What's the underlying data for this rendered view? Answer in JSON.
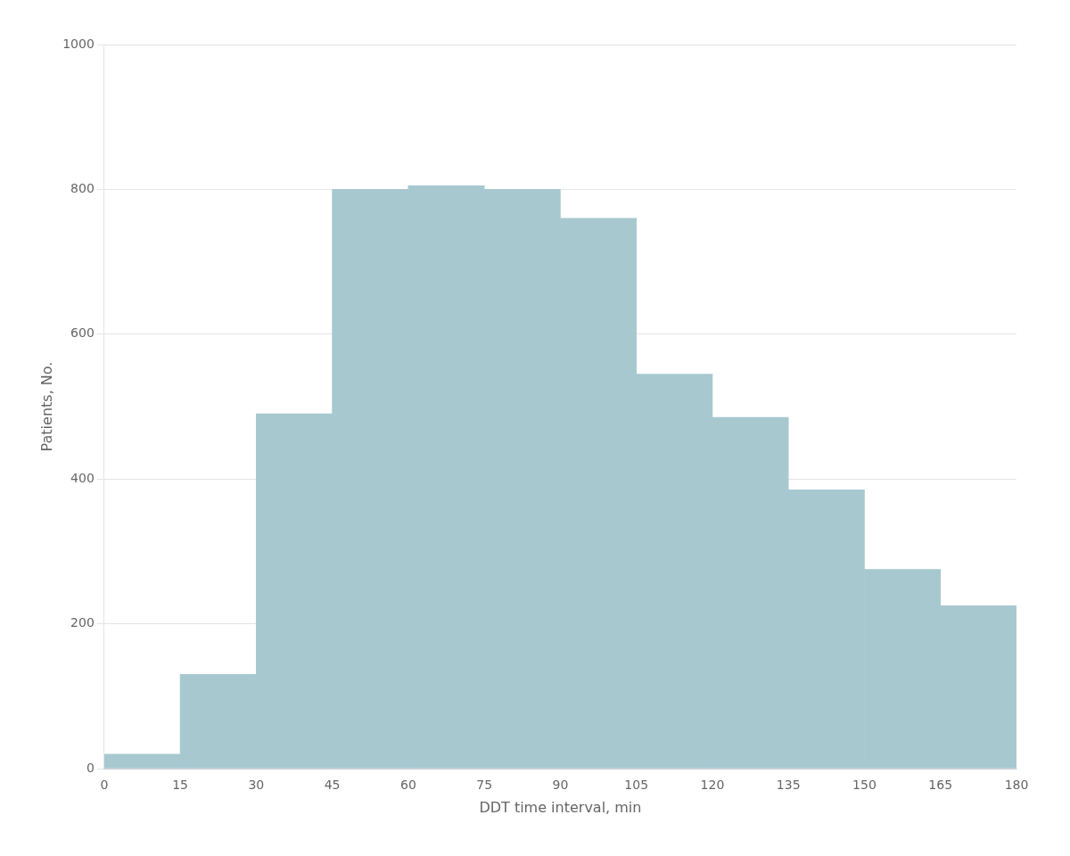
{
  "chart_data": {
    "type": "histogram",
    "bins": [
      0,
      15,
      30,
      45,
      60,
      75,
      90,
      105,
      120,
      135,
      150,
      165,
      180
    ],
    "values": [
      20,
      130,
      490,
      800,
      805,
      800,
      760,
      545,
      485,
      385,
      275,
      225
    ],
    "color": "#a8c8d0",
    "xlabel": "DDT time interval, min",
    "ylabel": "Patients, No.",
    "xlim": [
      0,
      180
    ],
    "ylim": [
      0,
      1000
    ],
    "xticks": [
      0,
      15,
      30,
      45,
      60,
      75,
      90,
      105,
      120,
      135,
      150,
      165,
      180
    ],
    "yticks": [
      0,
      200,
      400,
      600,
      800,
      1000
    ],
    "grid": true
  }
}
